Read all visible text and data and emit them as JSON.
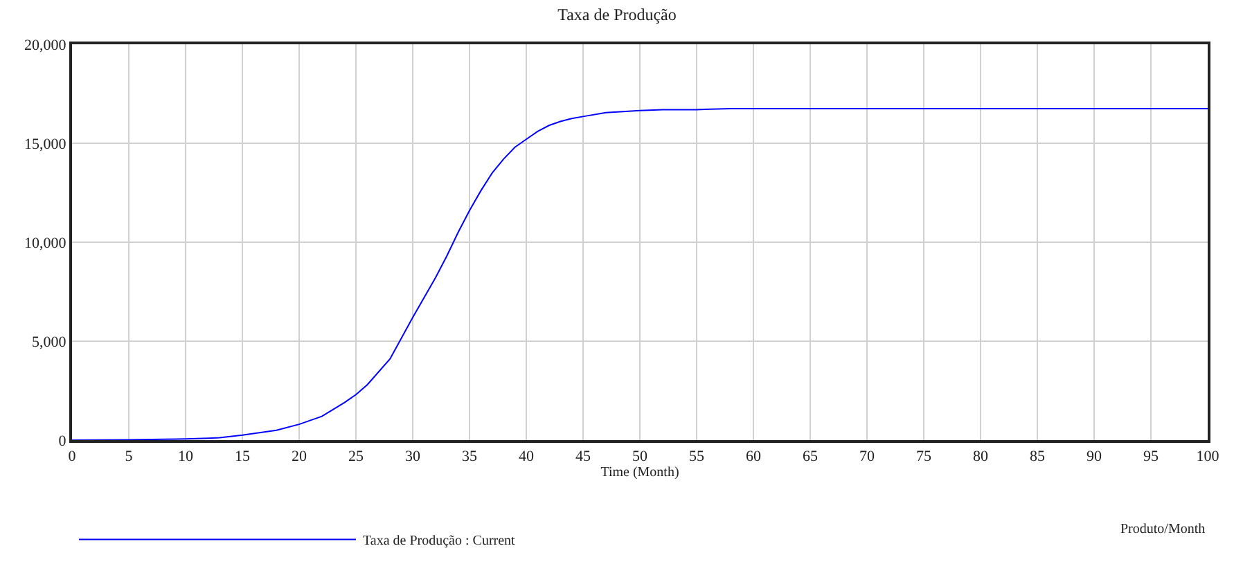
{
  "chart_data": {
    "type": "line",
    "title": "Taxa de Produção",
    "xlabel": "Time (Month)",
    "x": [
      0,
      5,
      8,
      10,
      12,
      13,
      15,
      18,
      20,
      22,
      24,
      25,
      26,
      28,
      30,
      32,
      33,
      34,
      35,
      36,
      37,
      38,
      39,
      40,
      41,
      42,
      43,
      44,
      45,
      47,
      50,
      52,
      55,
      58,
      60,
      100
    ],
    "series": [
      {
        "name": "Taxa de Produção : Current",
        "color": "#0000ff",
        "values": [
          0,
          20,
          40,
          60,
          100,
          120,
          250,
          500,
          800,
          1200,
          1900,
          2300,
          2800,
          4100,
          6200,
          8200,
          9300,
          10500,
          11600,
          12600,
          13500,
          14200,
          14800,
          15200,
          15600,
          15900,
          16100,
          16250,
          16350,
          16550,
          16650,
          16700,
          16700,
          16750,
          16750,
          16750
        ]
      }
    ],
    "annotations": [
      "Produto/Month"
    ],
    "xlim": [
      0,
      100
    ],
    "xticks": [
      0,
      5,
      10,
      15,
      20,
      25,
      30,
      35,
      40,
      45,
      50,
      55,
      60,
      65,
      70,
      75,
      80,
      85,
      90,
      95,
      100
    ],
    "ylim": [
      0,
      20000
    ],
    "yticks": [
      {
        "value": 0,
        "label": "0"
      },
      {
        "value": 5000,
        "label": "5,000"
      },
      {
        "value": 10000,
        "label": "10,000"
      },
      {
        "value": 15000,
        "label": "15,000"
      },
      {
        "value": 20000,
        "label": "20,000"
      }
    ],
    "grid": true,
    "legend": "bottom left",
    "marker": "none",
    "line_style": "solid"
  }
}
